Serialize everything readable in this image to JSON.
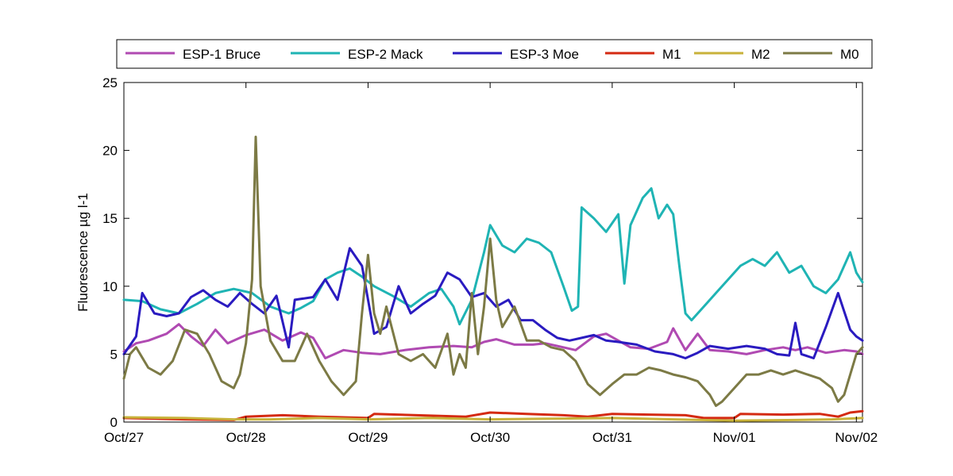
{
  "chart_data": {
    "type": "line",
    "title": "",
    "xlabel": "",
    "ylabel": "Fluorescence µg l-1",
    "ylim": [
      0,
      25
    ],
    "yticks": [
      0,
      5,
      10,
      15,
      20,
      25
    ],
    "xlim": [
      0,
      6.05
    ],
    "xticks": [
      {
        "x": 0,
        "label": "Oct/27"
      },
      {
        "x": 1,
        "label": "Oct/28"
      },
      {
        "x": 2,
        "label": "Oct/29"
      },
      {
        "x": 3,
        "label": "Oct/30"
      },
      {
        "x": 4,
        "label": "Oct/31"
      },
      {
        "x": 5,
        "label": "Nov/01"
      },
      {
        "x": 6,
        "label": "Nov/02"
      }
    ],
    "grid": false,
    "legend": "top, horizontal",
    "series": [
      {
        "name": "ESP-1 Bruce",
        "color": "#b04ab2",
        "points": [
          [
            0,
            5.2
          ],
          [
            0.1,
            5.8
          ],
          [
            0.2,
            6.0
          ],
          [
            0.35,
            6.5
          ],
          [
            0.45,
            7.2
          ],
          [
            0.55,
            6.3
          ],
          [
            0.65,
            5.6
          ],
          [
            0.75,
            6.8
          ],
          [
            0.85,
            5.8
          ],
          [
            1.0,
            6.4
          ],
          [
            1.15,
            6.8
          ],
          [
            1.3,
            6.0
          ],
          [
            1.45,
            6.6
          ],
          [
            1.55,
            6.2
          ],
          [
            1.65,
            4.7
          ],
          [
            1.8,
            5.3
          ],
          [
            1.95,
            5.1
          ],
          [
            2.1,
            5.0
          ],
          [
            2.3,
            5.3
          ],
          [
            2.5,
            5.5
          ],
          [
            2.7,
            5.6
          ],
          [
            2.85,
            5.5
          ],
          [
            2.95,
            5.9
          ],
          [
            3.05,
            6.1
          ],
          [
            3.2,
            5.7
          ],
          [
            3.35,
            5.7
          ],
          [
            3.45,
            5.8
          ],
          [
            3.55,
            5.6
          ],
          [
            3.7,
            5.3
          ],
          [
            3.85,
            6.3
          ],
          [
            3.95,
            6.5
          ],
          [
            4.05,
            6.0
          ],
          [
            4.15,
            5.5
          ],
          [
            4.3,
            5.4
          ],
          [
            4.45,
            5.9
          ],
          [
            4.5,
            6.9
          ],
          [
            4.6,
            5.3
          ],
          [
            4.7,
            6.5
          ],
          [
            4.8,
            5.3
          ],
          [
            4.95,
            5.2
          ],
          [
            5.1,
            5.0
          ],
          [
            5.25,
            5.3
          ],
          [
            5.4,
            5.5
          ],
          [
            5.5,
            5.3
          ],
          [
            5.6,
            5.5
          ],
          [
            5.75,
            5.1
          ],
          [
            5.9,
            5.3
          ],
          [
            6.0,
            5.2
          ],
          [
            6.05,
            5.0
          ]
        ]
      },
      {
        "name": "ESP-2 Mack",
        "color": "#1fb4b4",
        "points": [
          [
            0,
            9.0
          ],
          [
            0.15,
            8.9
          ],
          [
            0.3,
            8.3
          ],
          [
            0.45,
            8.0
          ],
          [
            0.6,
            8.7
          ],
          [
            0.75,
            9.5
          ],
          [
            0.9,
            9.8
          ],
          [
            1.05,
            9.5
          ],
          [
            1.2,
            8.5
          ],
          [
            1.35,
            8.0
          ],
          [
            1.45,
            8.4
          ],
          [
            1.55,
            8.9
          ],
          [
            1.65,
            10.5
          ],
          [
            1.75,
            11.0
          ],
          [
            1.85,
            11.3
          ],
          [
            1.95,
            10.7
          ],
          [
            2.05,
            10.0
          ],
          [
            2.2,
            9.3
          ],
          [
            2.35,
            8.5
          ],
          [
            2.5,
            9.5
          ],
          [
            2.6,
            9.8
          ],
          [
            2.7,
            8.5
          ],
          [
            2.75,
            7.2
          ],
          [
            2.85,
            9.0
          ],
          [
            2.95,
            12.5
          ],
          [
            3.0,
            14.5
          ],
          [
            3.1,
            13.0
          ],
          [
            3.2,
            12.5
          ],
          [
            3.3,
            13.5
          ],
          [
            3.4,
            13.2
          ],
          [
            3.5,
            12.5
          ],
          [
            3.6,
            10.0
          ],
          [
            3.67,
            8.2
          ],
          [
            3.72,
            8.5
          ],
          [
            3.75,
            15.8
          ],
          [
            3.85,
            15.0
          ],
          [
            3.95,
            14.0
          ],
          [
            4.05,
            15.3
          ],
          [
            4.1,
            10.2
          ],
          [
            4.15,
            14.5
          ],
          [
            4.25,
            16.5
          ],
          [
            4.32,
            17.2
          ],
          [
            4.38,
            15.0
          ],
          [
            4.45,
            16.0
          ],
          [
            4.5,
            15.3
          ],
          [
            4.55,
            11.5
          ],
          [
            4.6,
            8.0
          ],
          [
            4.65,
            7.5
          ],
          [
            4.75,
            8.5
          ],
          [
            4.85,
            9.5
          ],
          [
            4.95,
            10.5
          ],
          [
            5.05,
            11.5
          ],
          [
            5.15,
            12.0
          ],
          [
            5.25,
            11.5
          ],
          [
            5.35,
            12.5
          ],
          [
            5.45,
            11.0
          ],
          [
            5.55,
            11.5
          ],
          [
            5.65,
            10.0
          ],
          [
            5.75,
            9.5
          ],
          [
            5.85,
            10.5
          ],
          [
            5.95,
            12.5
          ],
          [
            6.0,
            11.0
          ],
          [
            6.05,
            10.3
          ]
        ]
      },
      {
        "name": "ESP-3 Moe",
        "color": "#2a1bc0",
        "points": [
          [
            0,
            5.0
          ],
          [
            0.1,
            6.3
          ],
          [
            0.15,
            9.5
          ],
          [
            0.25,
            8.0
          ],
          [
            0.35,
            7.8
          ],
          [
            0.45,
            8.0
          ],
          [
            0.55,
            9.2
          ],
          [
            0.65,
            9.7
          ],
          [
            0.75,
            9.0
          ],
          [
            0.85,
            8.5
          ],
          [
            0.95,
            9.5
          ],
          [
            1.05,
            8.7
          ],
          [
            1.15,
            8.0
          ],
          [
            1.25,
            9.3
          ],
          [
            1.35,
            5.5
          ],
          [
            1.4,
            9.0
          ],
          [
            1.55,
            9.2
          ],
          [
            1.65,
            10.5
          ],
          [
            1.75,
            9.0
          ],
          [
            1.85,
            12.8
          ],
          [
            1.95,
            11.5
          ],
          [
            2.05,
            6.5
          ],
          [
            2.15,
            7.0
          ],
          [
            2.25,
            10.0
          ],
          [
            2.35,
            8.0
          ],
          [
            2.45,
            8.7
          ],
          [
            2.55,
            9.3
          ],
          [
            2.65,
            11.0
          ],
          [
            2.75,
            10.5
          ],
          [
            2.85,
            9.2
          ],
          [
            2.95,
            9.5
          ],
          [
            3.05,
            8.5
          ],
          [
            3.15,
            9.0
          ],
          [
            3.25,
            7.5
          ],
          [
            3.35,
            7.5
          ],
          [
            3.45,
            6.8
          ],
          [
            3.55,
            6.2
          ],
          [
            3.65,
            6.0
          ],
          [
            3.75,
            6.2
          ],
          [
            3.85,
            6.4
          ],
          [
            3.95,
            6.0
          ],
          [
            4.05,
            5.9
          ],
          [
            4.2,
            5.7
          ],
          [
            4.35,
            5.2
          ],
          [
            4.5,
            5.0
          ],
          [
            4.6,
            4.7
          ],
          [
            4.7,
            5.1
          ],
          [
            4.8,
            5.6
          ],
          [
            4.95,
            5.4
          ],
          [
            5.1,
            5.6
          ],
          [
            5.25,
            5.4
          ],
          [
            5.35,
            5.0
          ],
          [
            5.45,
            4.9
          ],
          [
            5.5,
            7.3
          ],
          [
            5.55,
            5.0
          ],
          [
            5.65,
            4.7
          ],
          [
            5.75,
            7.0
          ],
          [
            5.85,
            9.5
          ],
          [
            5.95,
            6.8
          ],
          [
            6.0,
            6.3
          ],
          [
            6.05,
            6.0
          ]
        ]
      },
      {
        "name": "M1",
        "color": "#d42a12",
        "points": [
          [
            0,
            0.3
          ],
          [
            0.5,
            0.2
          ],
          [
            0.9,
            0.15
          ],
          [
            1.0,
            0.4
          ],
          [
            1.3,
            0.5
          ],
          [
            1.6,
            0.4
          ],
          [
            2.0,
            0.3
          ],
          [
            2.05,
            0.6
          ],
          [
            2.4,
            0.5
          ],
          [
            2.8,
            0.4
          ],
          [
            3.0,
            0.7
          ],
          [
            3.3,
            0.6
          ],
          [
            3.6,
            0.5
          ],
          [
            3.8,
            0.4
          ],
          [
            4.0,
            0.6
          ],
          [
            4.3,
            0.55
          ],
          [
            4.6,
            0.5
          ],
          [
            4.75,
            0.3
          ],
          [
            5.0,
            0.3
          ],
          [
            5.05,
            0.6
          ],
          [
            5.4,
            0.55
          ],
          [
            5.7,
            0.6
          ],
          [
            5.85,
            0.4
          ],
          [
            5.95,
            0.7
          ],
          [
            6.05,
            0.8
          ]
        ]
      },
      {
        "name": "M2",
        "color": "#c8b23a",
        "points": [
          [
            0,
            0.35
          ],
          [
            0.5,
            0.3
          ],
          [
            0.9,
            0.2
          ],
          [
            1.2,
            0.2
          ],
          [
            1.6,
            0.3
          ],
          [
            2.0,
            0.2
          ],
          [
            2.5,
            0.3
          ],
          [
            3.0,
            0.2
          ],
          [
            3.5,
            0.25
          ],
          [
            4.0,
            0.3
          ],
          [
            4.5,
            0.2
          ],
          [
            5.0,
            0.1
          ],
          [
            5.5,
            0.15
          ],
          [
            5.8,
            0.2
          ],
          [
            6.05,
            0.3
          ]
        ]
      },
      {
        "name": "M0",
        "color": "#7c7a45",
        "points": [
          [
            0,
            3.2
          ],
          [
            0.05,
            5.0
          ],
          [
            0.1,
            5.5
          ],
          [
            0.2,
            4.0
          ],
          [
            0.3,
            3.5
          ],
          [
            0.4,
            4.5
          ],
          [
            0.5,
            6.8
          ],
          [
            0.6,
            6.5
          ],
          [
            0.7,
            5.0
          ],
          [
            0.8,
            3.0
          ],
          [
            0.9,
            2.5
          ],
          [
            0.95,
            3.5
          ],
          [
            1.0,
            5.8
          ],
          [
            1.05,
            10.5
          ],
          [
            1.08,
            21.0
          ],
          [
            1.12,
            10.0
          ],
          [
            1.2,
            6.0
          ],
          [
            1.3,
            4.5
          ],
          [
            1.4,
            4.5
          ],
          [
            1.5,
            6.5
          ],
          [
            1.6,
            4.5
          ],
          [
            1.7,
            3.0
          ],
          [
            1.8,
            2.0
          ],
          [
            1.9,
            3.0
          ],
          [
            1.95,
            8.0
          ],
          [
            2.0,
            12.3
          ],
          [
            2.05,
            8.0
          ],
          [
            2.1,
            6.5
          ],
          [
            2.15,
            8.5
          ],
          [
            2.25,
            5.0
          ],
          [
            2.35,
            4.5
          ],
          [
            2.45,
            5.0
          ],
          [
            2.55,
            4.0
          ],
          [
            2.65,
            6.5
          ],
          [
            2.7,
            3.5
          ],
          [
            2.75,
            5.0
          ],
          [
            2.8,
            4.0
          ],
          [
            2.85,
            9.5
          ],
          [
            2.9,
            5.0
          ],
          [
            2.95,
            8.5
          ],
          [
            3.0,
            13.5
          ],
          [
            3.05,
            9.0
          ],
          [
            3.1,
            7.0
          ],
          [
            3.2,
            8.5
          ],
          [
            3.3,
            6.0
          ],
          [
            3.4,
            6.0
          ],
          [
            3.5,
            5.5
          ],
          [
            3.6,
            5.3
          ],
          [
            3.7,
            4.5
          ],
          [
            3.8,
            2.8
          ],
          [
            3.9,
            2.0
          ],
          [
            4.0,
            2.8
          ],
          [
            4.1,
            3.5
          ],
          [
            4.2,
            3.5
          ],
          [
            4.3,
            4.0
          ],
          [
            4.4,
            3.8
          ],
          [
            4.5,
            3.5
          ],
          [
            4.6,
            3.3
          ],
          [
            4.7,
            3.0
          ],
          [
            4.8,
            2.0
          ],
          [
            4.85,
            1.2
          ],
          [
            4.9,
            1.5
          ],
          [
            5.0,
            2.5
          ],
          [
            5.1,
            3.5
          ],
          [
            5.2,
            3.5
          ],
          [
            5.3,
            3.8
          ],
          [
            5.4,
            3.5
          ],
          [
            5.5,
            3.8
          ],
          [
            5.6,
            3.5
          ],
          [
            5.7,
            3.2
          ],
          [
            5.8,
            2.5
          ],
          [
            5.85,
            1.5
          ],
          [
            5.9,
            2.0
          ],
          [
            5.95,
            3.5
          ],
          [
            6.0,
            5.0
          ],
          [
            6.05,
            5.5
          ]
        ]
      }
    ]
  }
}
